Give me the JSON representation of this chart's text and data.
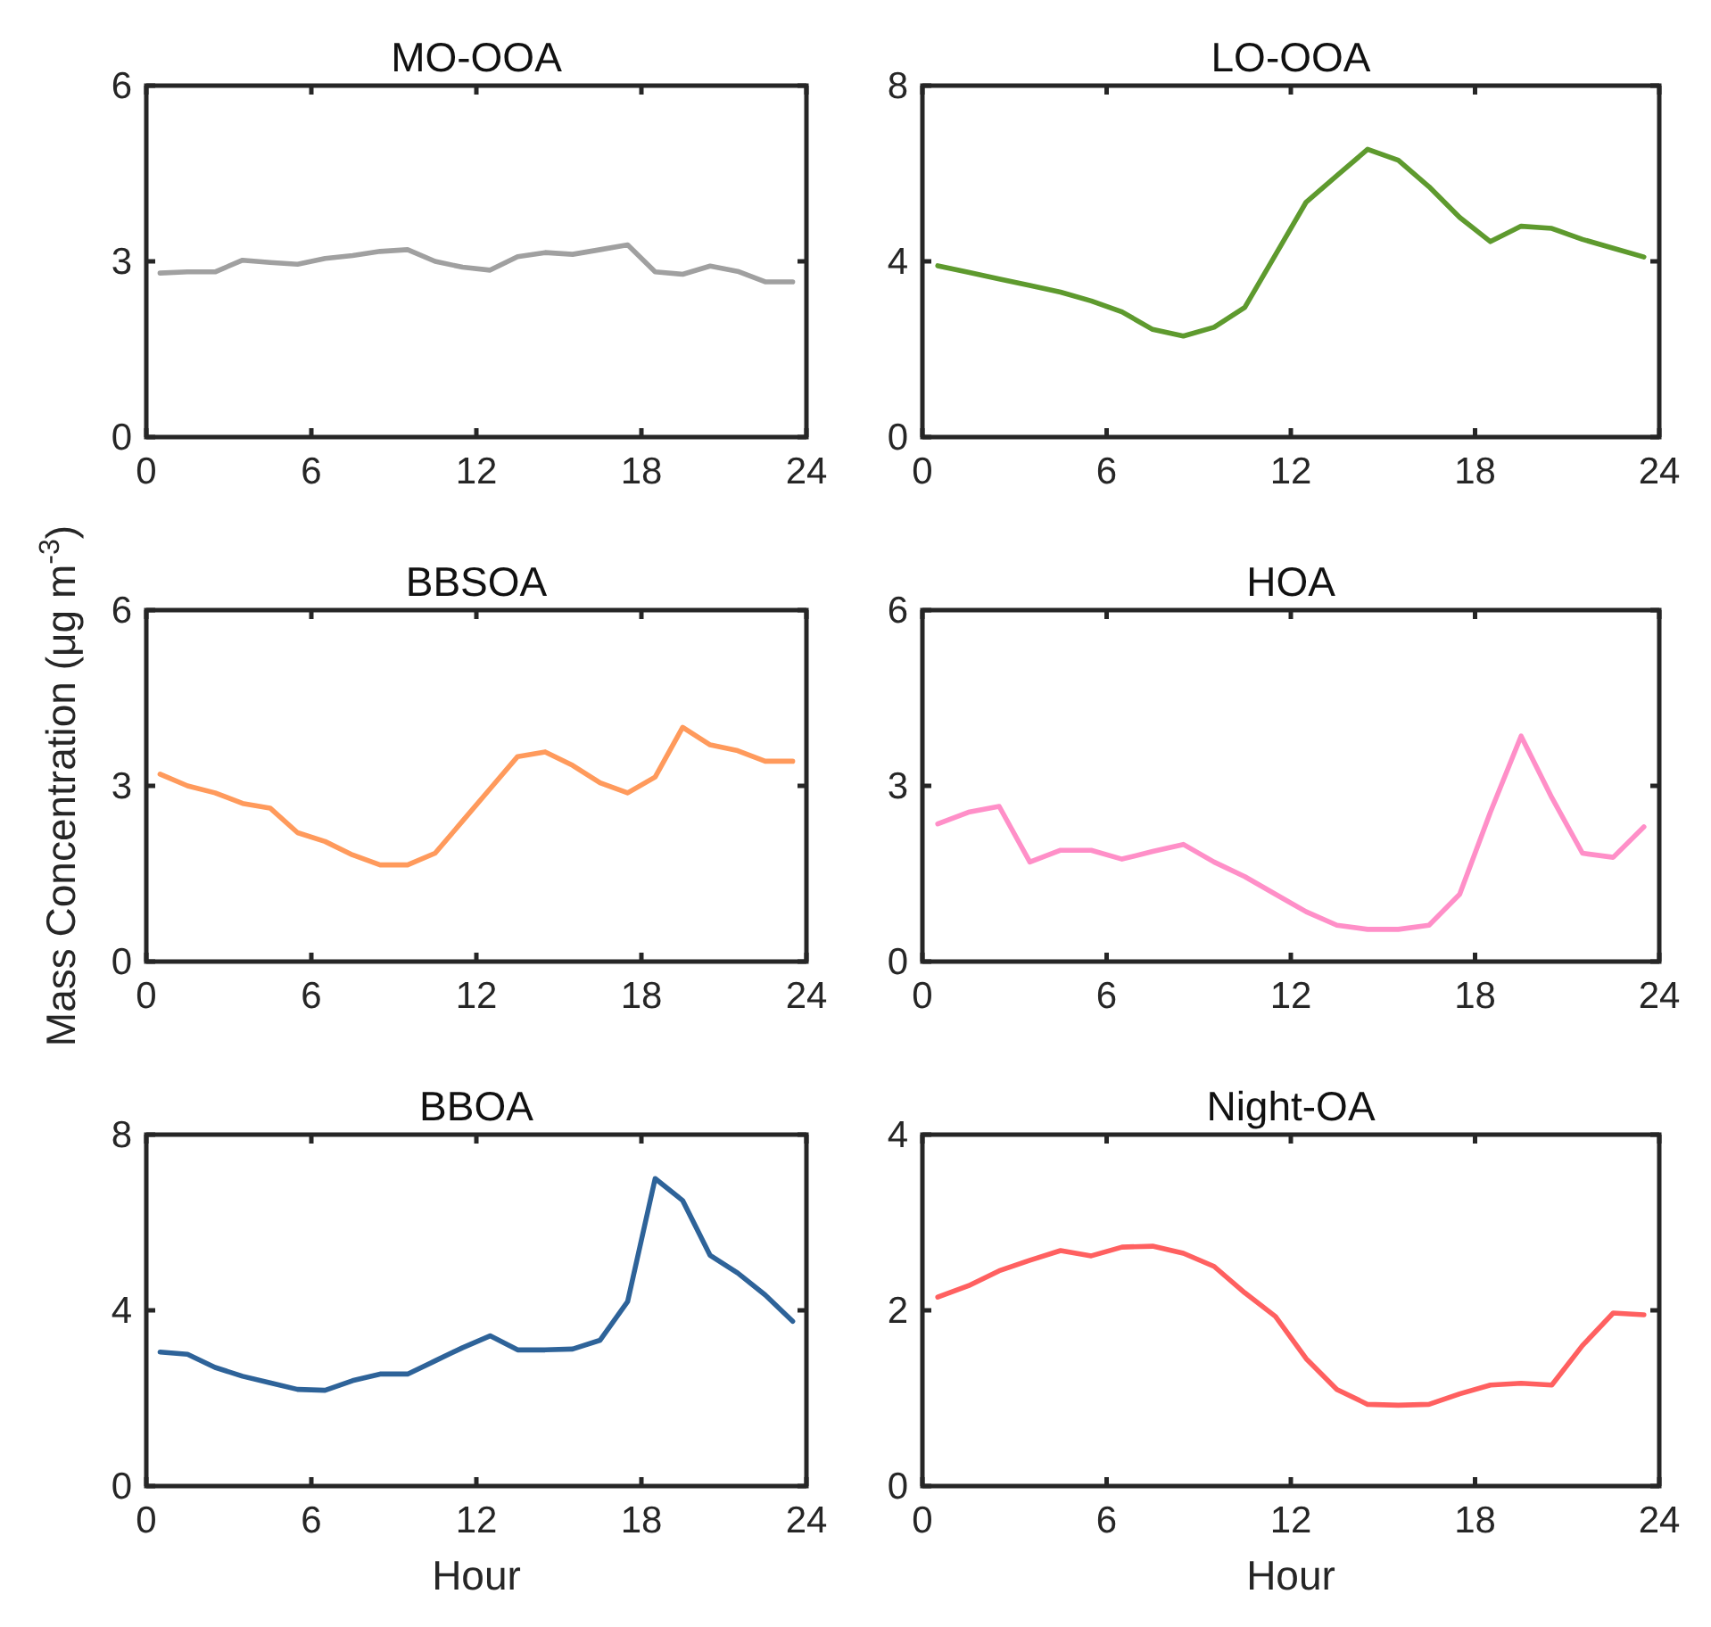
{
  "chart_data": [
    {
      "type": "line",
      "title": "MO-OOA",
      "x": [
        0.5,
        1.5,
        2.5,
        3.5,
        4.5,
        5.5,
        6.5,
        7.5,
        8.5,
        9.5,
        10.5,
        11.5,
        12.5,
        13.5,
        14.5,
        15.5,
        16.5,
        17.5,
        18.5,
        19.5,
        20.5,
        21.5,
        22.5,
        23.5
      ],
      "color": "#a0a0a0",
      "values": [
        2.8,
        2.82,
        2.82,
        3.02,
        2.98,
        2.95,
        3.05,
        3.1,
        3.17,
        3.2,
        3.0,
        2.9,
        2.85,
        3.08,
        3.15,
        3.12,
        3.2,
        3.28,
        2.82,
        2.78,
        2.92,
        2.83,
        2.65,
        2.65
      ],
      "xlim": [
        0,
        24
      ],
      "xticks": [
        0,
        6,
        12,
        18,
        24
      ],
      "ylim": [
        0,
        6
      ],
      "yticks": [
        0,
        3,
        6
      ]
    },
    {
      "type": "line",
      "title": "LO-OOA",
      "x": [
        0.5,
        1.5,
        2.5,
        3.5,
        4.5,
        5.5,
        6.5,
        7.5,
        8.5,
        9.5,
        10.5,
        11.5,
        12.5,
        13.5,
        14.5,
        15.5,
        16.5,
        17.5,
        18.5,
        19.5,
        20.5,
        21.5,
        22.5,
        23.5
      ],
      "color": "#5e9a2e",
      "values": [
        3.9,
        3.75,
        3.6,
        3.45,
        3.3,
        3.1,
        2.85,
        2.45,
        2.3,
        2.5,
        2.95,
        4.15,
        5.35,
        5.95,
        6.55,
        6.3,
        5.7,
        5.0,
        4.45,
        4.8,
        4.75,
        4.5,
        4.3,
        4.1
      ],
      "xlim": [
        0,
        24
      ],
      "xticks": [
        0,
        6,
        12,
        18,
        24
      ],
      "ylim": [
        0,
        8
      ],
      "yticks": [
        0,
        4,
        8
      ]
    },
    {
      "type": "line",
      "title": "BBSOA",
      "ylabel": "Mass Concentration (μg m$^{-3}$)",
      "x": [
        0.5,
        1.5,
        2.5,
        3.5,
        4.5,
        5.5,
        6.5,
        7.5,
        8.5,
        9.5,
        10.5,
        11.5,
        12.5,
        13.5,
        14.5,
        15.5,
        16.5,
        17.5,
        18.5,
        19.5,
        20.5,
        21.5,
        22.5,
        23.5
      ],
      "color": "#ff9a5c",
      "values": [
        3.2,
        3.0,
        2.88,
        2.7,
        2.62,
        2.2,
        2.05,
        1.82,
        1.65,
        1.65,
        1.85,
        2.4,
        2.95,
        3.5,
        3.58,
        3.35,
        3.05,
        2.88,
        3.15,
        4.0,
        3.7,
        3.6,
        3.42,
        3.42
      ],
      "xlim": [
        0,
        24
      ],
      "xticks": [
        0,
        6,
        12,
        18,
        24
      ],
      "ylim": [
        0,
        6
      ],
      "yticks": [
        0,
        3,
        6
      ]
    },
    {
      "type": "line",
      "title": "HOA",
      "x": [
        0.5,
        1.5,
        2.5,
        3.5,
        4.5,
        5.5,
        6.5,
        7.5,
        8.5,
        9.5,
        10.5,
        11.5,
        12.5,
        13.5,
        14.5,
        15.5,
        16.5,
        17.5,
        18.5,
        19.5,
        20.5,
        21.5,
        22.5,
        23.5
      ],
      "color": "#ff8fc8",
      "values": [
        2.35,
        2.55,
        2.65,
        1.7,
        1.9,
        1.9,
        1.75,
        1.88,
        2.0,
        1.7,
        1.45,
        1.15,
        0.85,
        0.62,
        0.55,
        0.55,
        0.62,
        1.15,
        2.55,
        3.85,
        2.8,
        1.85,
        1.78,
        2.3
      ],
      "xlim": [
        0,
        24
      ],
      "xticks": [
        0,
        6,
        12,
        18,
        24
      ],
      "ylim": [
        0,
        6
      ],
      "yticks": [
        0,
        3,
        6
      ]
    },
    {
      "type": "line",
      "title": "BBOA",
      "xlabel": "Hour",
      "x": [
        0.5,
        1.5,
        2.5,
        3.5,
        4.5,
        5.5,
        6.5,
        7.5,
        8.5,
        9.5,
        10.5,
        11.5,
        12.5,
        13.5,
        14.5,
        15.5,
        16.5,
        17.5,
        18.5,
        19.5,
        20.5,
        21.5,
        22.5,
        23.5
      ],
      "color": "#2e6399",
      "values": [
        3.05,
        3.0,
        2.7,
        2.5,
        2.35,
        2.2,
        2.18,
        2.4,
        2.55,
        2.55,
        2.85,
        3.15,
        3.42,
        3.1,
        3.1,
        3.12,
        3.32,
        4.2,
        7.0,
        6.5,
        5.25,
        4.85,
        4.35,
        3.75
      ],
      "xlim": [
        0,
        24
      ],
      "xticks": [
        0,
        6,
        12,
        18,
        24
      ],
      "ylim": [
        0,
        8
      ],
      "yticks": [
        0,
        4,
        8
      ]
    },
    {
      "type": "line",
      "title": "Night-OA",
      "xlabel": "Hour",
      "x": [
        0.5,
        1.5,
        2.5,
        3.5,
        4.5,
        5.5,
        6.5,
        7.5,
        8.5,
        9.5,
        10.5,
        11.5,
        12.5,
        13.5,
        14.5,
        15.5,
        16.5,
        17.5,
        18.5,
        19.5,
        20.5,
        21.5,
        22.5,
        23.5
      ],
      "color": "#ff6060",
      "values": [
        2.15,
        2.28,
        2.45,
        2.57,
        2.68,
        2.62,
        2.72,
        2.73,
        2.65,
        2.5,
        2.2,
        1.93,
        1.45,
        1.1,
        0.93,
        0.92,
        0.93,
        1.05,
        1.15,
        1.17,
        1.15,
        1.6,
        1.97,
        1.95
      ],
      "xlim": [
        0,
        24
      ],
      "xticks": [
        0,
        6,
        12,
        18,
        24
      ],
      "ylim": [
        0,
        4
      ],
      "yticks": [
        0,
        2,
        4
      ]
    }
  ]
}
